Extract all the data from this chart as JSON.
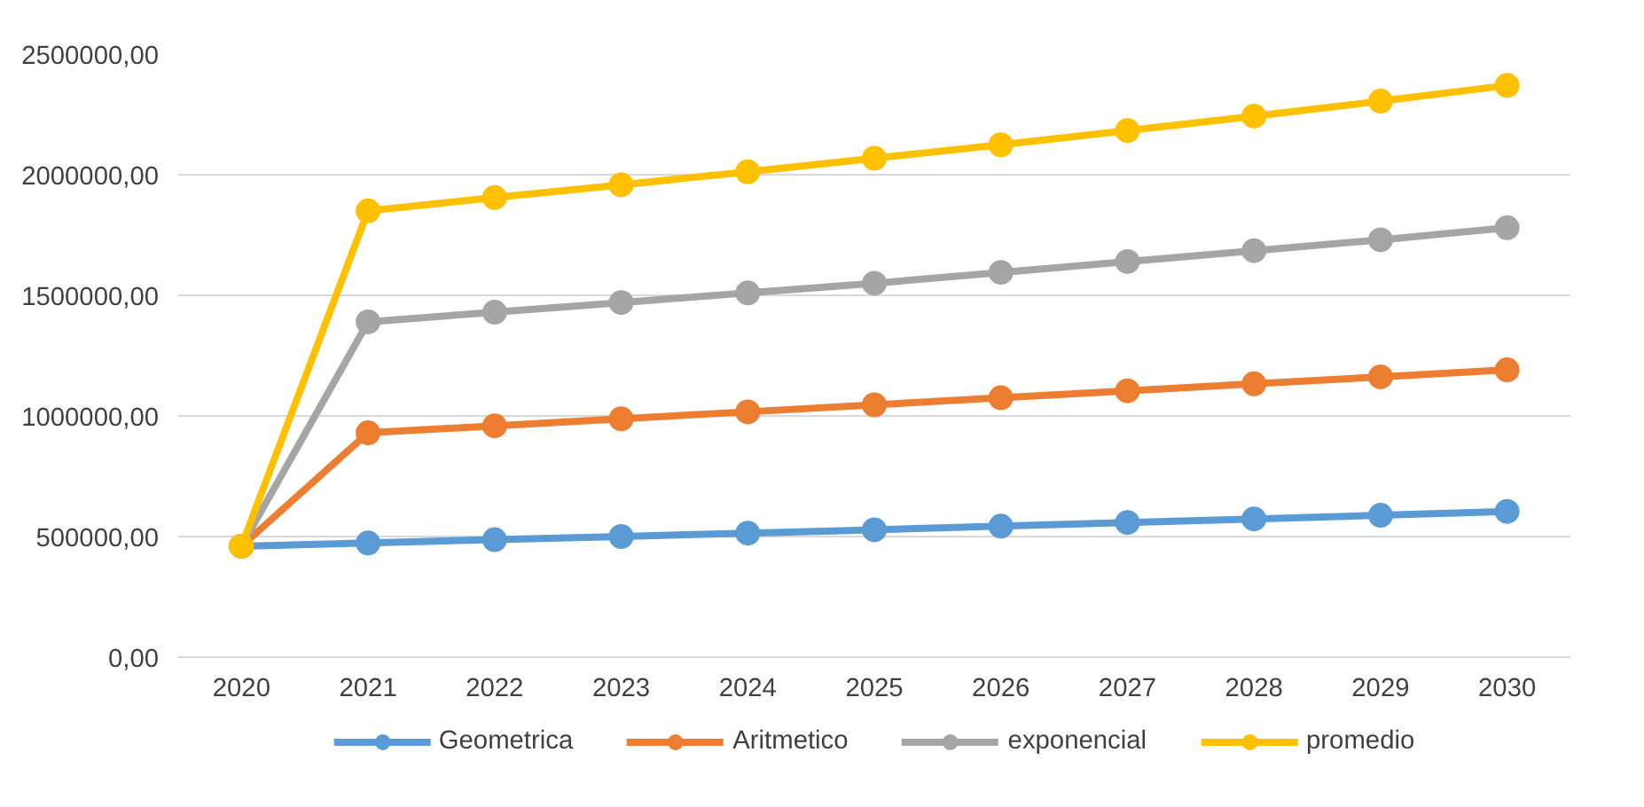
{
  "chart_data": {
    "type": "line",
    "categories": [
      "2020",
      "2021",
      "2022",
      "2023",
      "2024",
      "2025",
      "2026",
      "2027",
      "2028",
      "2029",
      "2030"
    ],
    "series": [
      {
        "name": "Geometrica",
        "color": "#5b9bd5",
        "values": [
          460000,
          473000,
          487000,
          500000,
          514000,
          528000,
          543000,
          558000,
          573000,
          588000,
          604000
        ]
      },
      {
        "name": "Aritmetico",
        "color": "#ed7d31",
        "values": [
          460000,
          930000,
          959000,
          988000,
          1017000,
          1046000,
          1075000,
          1104000,
          1133000,
          1162000,
          1191000
        ]
      },
      {
        "name": "exponencial",
        "color": "#a5a5a5",
        "values": [
          460000,
          1390000,
          1430000,
          1470000,
          1510000,
          1550000,
          1595000,
          1640000,
          1685000,
          1730000,
          1780000
        ]
      },
      {
        "name": "promedio",
        "color": "#ffc000",
        "values": [
          460000,
          1850000,
          1905000,
          1958000,
          2012000,
          2068000,
          2124000,
          2183000,
          2243000,
          2305000,
          2370000
        ]
      }
    ],
    "ylim": [
      0,
      2500000
    ],
    "yticks": [
      {
        "value": 0,
        "label": "0,00"
      },
      {
        "value": 500000,
        "label": "500000,00"
      },
      {
        "value": 1000000,
        "label": "1000000,00"
      },
      {
        "value": 1500000,
        "label": "1500000,00"
      },
      {
        "value": 2000000,
        "label": "2000000,00"
      },
      {
        "value": 2500000,
        "label": "2500000,00"
      }
    ],
    "grid": "y",
    "legend": "bottom",
    "marker": "circle",
    "line_style": "solid"
  }
}
